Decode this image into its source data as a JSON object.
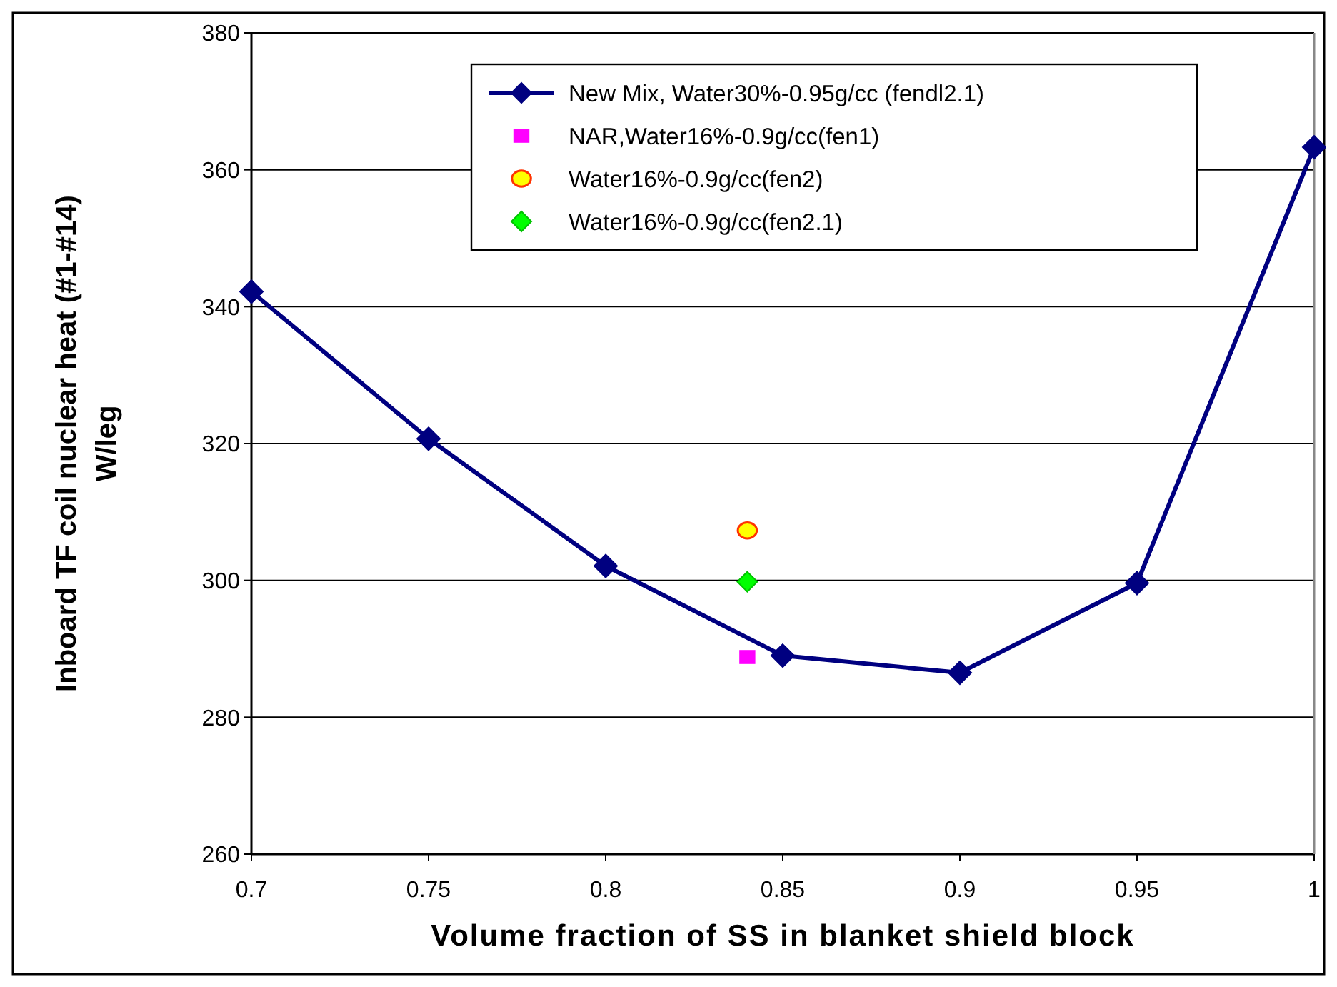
{
  "chart_data": {
    "type": "line",
    "xlabel": "Volume fraction of SS in blanket shield block",
    "ylabel": "Inboard TF coil nuclear heat (#1-#14)\nW/leg",
    "xlim": [
      0.7,
      1
    ],
    "xticks": [
      0.7,
      0.75,
      0.8,
      0.85,
      0.9,
      0.95,
      1
    ],
    "ylim": [
      260,
      380
    ],
    "yticks": [
      260,
      280,
      300,
      320,
      340,
      360,
      380
    ],
    "grid": "y",
    "legend": "top right",
    "series": [
      {
        "name": "New Mix, Water30%-0.95g/cc (fendl2.1)",
        "marker": "diamond",
        "color": "#000080",
        "x": [
          0.7,
          0.75,
          0.8,
          0.85,
          0.9,
          0.95,
          1
        ],
        "values": [
          342.2,
          320.7,
          302.1,
          289.0,
          286.5,
          299.6,
          363.3
        ]
      },
      {
        "name": "NAR,Water16%-0.9g/cc(fen1)",
        "type": "scatter",
        "marker": "square",
        "color": "#ff00ff",
        "x": [
          0.84
        ],
        "values": [
          288.8
        ]
      },
      {
        "name": "Water16%-0.9g/cc(fen2)",
        "type": "scatter",
        "marker": "circle",
        "color": "#ffff00",
        "x": [
          0.84
        ],
        "values": [
          307.3
        ]
      },
      {
        "name": "Water16%-0.9g/cc(fen2.1)",
        "type": "scatter",
        "marker": "diamond",
        "color": "#00ff00",
        "x": [
          0.84
        ],
        "values": [
          299.8
        ]
      }
    ]
  }
}
